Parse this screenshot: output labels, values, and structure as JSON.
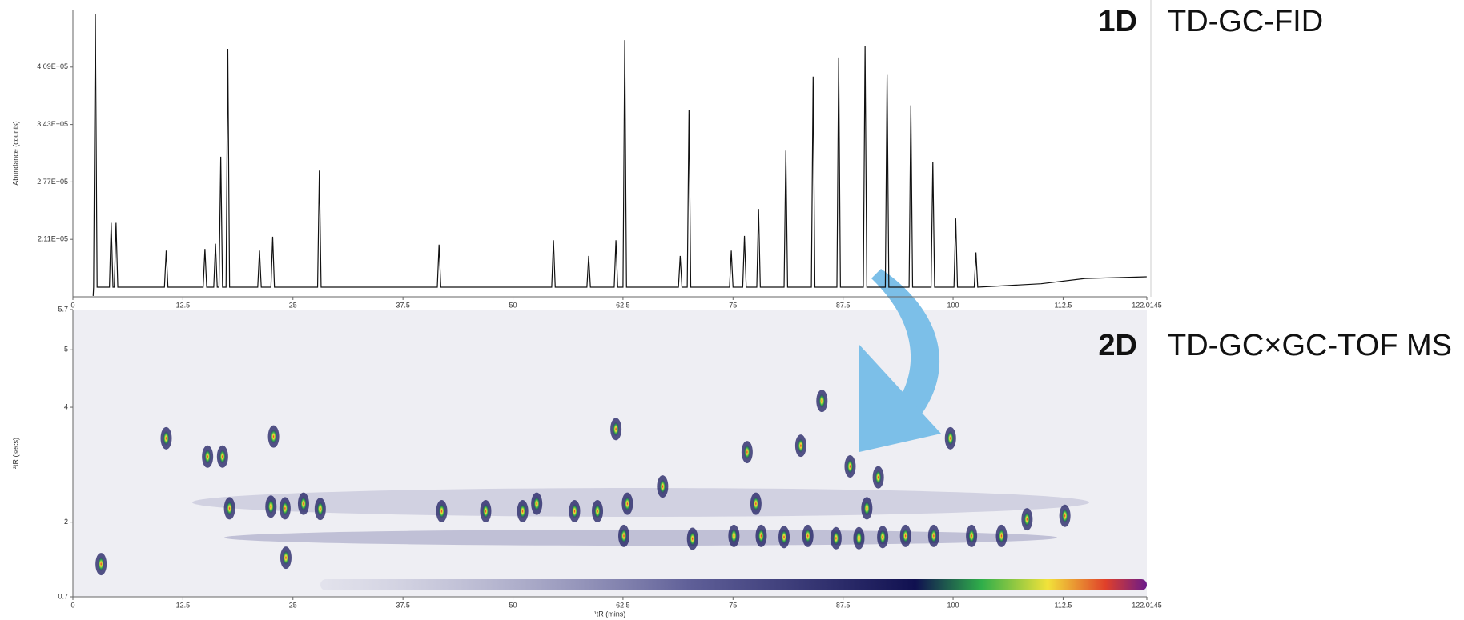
{
  "chart_data": [
    {
      "type": "line",
      "label": "1D",
      "title": "TD-GC-FID",
      "ylabel": "Abundance (counts)",
      "color": "#111111",
      "xlim": [
        0,
        122.0145
      ],
      "xticks": [
        0,
        12.5,
        25,
        37.5,
        50,
        62.5,
        75,
        87.5,
        100,
        112.5,
        122.0145
      ],
      "ylim": [
        145000,
        475000
      ],
      "yticks": [
        {
          "value": 211000,
          "label": "2.11E+05"
        },
        {
          "value": 277000,
          "label": "2.77E+05"
        },
        {
          "value": 343000,
          "label": "3.43E+05"
        },
        {
          "value": 409000,
          "label": "4.09E+05"
        }
      ],
      "x": [
        2.3,
        2.35,
        2.55,
        2.75,
        4.15,
        4.35,
        4.55,
        4.7,
        4.9,
        5.1,
        10.4,
        10.6,
        10.8,
        14.8,
        15,
        15.2,
        16,
        16.2,
        16.4,
        16.6,
        16.8,
        17.0,
        17.4,
        17.6,
        17.8,
        21,
        21.2,
        21.4,
        22.5,
        22.7,
        22.9,
        27.8,
        28,
        28.2,
        41.4,
        41.6,
        41.8,
        54.4,
        54.6,
        54.8,
        58.4,
        58.6,
        58.8,
        61.5,
        61.7,
        61.9,
        62.5,
        62.7,
        62.9,
        68.8,
        69,
        69.2,
        69.8,
        70,
        70.2,
        74.6,
        74.8,
        75,
        76.1,
        76.3,
        76.5,
        77.7,
        77.9,
        78.1,
        80.8,
        81,
        81.2,
        83.9,
        84.1,
        84.3,
        86.8,
        87,
        87.2,
        89.8,
        90,
        90.2,
        92.3,
        92.5,
        92.7,
        95,
        95.2,
        95.4,
        97.5,
        97.7,
        97.9,
        100.1,
        100.3,
        100.5,
        102.4,
        102.6,
        102.8,
        110,
        115,
        122
      ],
      "y": [
        146000,
        156000,
        470000,
        156000,
        156000,
        230000,
        156000,
        156000,
        230000,
        156000,
        156000,
        198000,
        156000,
        156000,
        200000,
        156000,
        156000,
        206000,
        156000,
        156000,
        306000,
        156000,
        156000,
        430000,
        156000,
        156000,
        198000,
        156000,
        156000,
        214000,
        156000,
        156000,
        290000,
        156000,
        156000,
        205000,
        156000,
        156000,
        210000,
        156000,
        156000,
        192000,
        156000,
        156000,
        210000,
        156000,
        156000,
        440000,
        156000,
        156000,
        192000,
        156000,
        156000,
        360000,
        156000,
        156000,
        198000,
        156000,
        156000,
        215000,
        156000,
        156000,
        246000,
        156000,
        156000,
        313000,
        156000,
        156000,
        398000,
        156000,
        156000,
        420000,
        156000,
        156000,
        433000,
        156000,
        156000,
        400000,
        156000,
        156000,
        365000,
        156000,
        156000,
        300000,
        156000,
        156000,
        235000,
        156000,
        156000,
        196000,
        156000,
        160000,
        166000,
        168000
      ]
    },
    {
      "type": "scatter",
      "label": "2D",
      "title": "TD-GC×GC-TOF MS",
      "ylabel": "²tR (secs)",
      "xlabel": "¹tR (mins)",
      "color": "#1c1c60",
      "xlim": [
        0,
        122.0145
      ],
      "xticks": [
        0,
        12.5,
        25,
        37.5,
        50,
        62.5,
        75,
        87.5,
        100,
        112.5,
        122.0145
      ],
      "ylim": [
        0.7,
        5.7
      ],
      "yticks": [
        0.7,
        2,
        4,
        5,
        5.7
      ],
      "x": [
        3.2,
        10.6,
        15.3,
        17,
        17.8,
        22.8,
        22.5,
        24.1,
        26.2,
        28.1,
        24.2,
        41.9,
        46.9,
        51.1,
        52.7,
        57,
        59.6,
        61.7,
        63,
        62.6,
        67,
        70.4,
        76.6,
        77.6,
        75.1,
        78.2,
        80.8,
        82.7,
        85.1,
        83.5,
        88.3,
        91.5,
        90.2,
        86.7,
        89.3,
        92,
        94.6,
        97.8,
        102.1,
        105.5,
        108.4,
        112.7,
        99.7
      ],
      "y": [
        1.27,
        3.46,
        3.14,
        3.14,
        2.24,
        3.49,
        2.27,
        2.24,
        2.32,
        2.23,
        1.38,
        2.19,
        2.19,
        2.19,
        2.32,
        2.19,
        2.19,
        3.62,
        2.32,
        1.76,
        2.62,
        1.71,
        3.22,
        2.32,
        1.76,
        1.76,
        1.74,
        3.33,
        4.11,
        1.76,
        2.97,
        2.78,
        2.24,
        1.72,
        1.72,
        1.74,
        1.76,
        1.76,
        1.76,
        1.76,
        2.05,
        2.11,
        3.46
      ]
    }
  ]
}
